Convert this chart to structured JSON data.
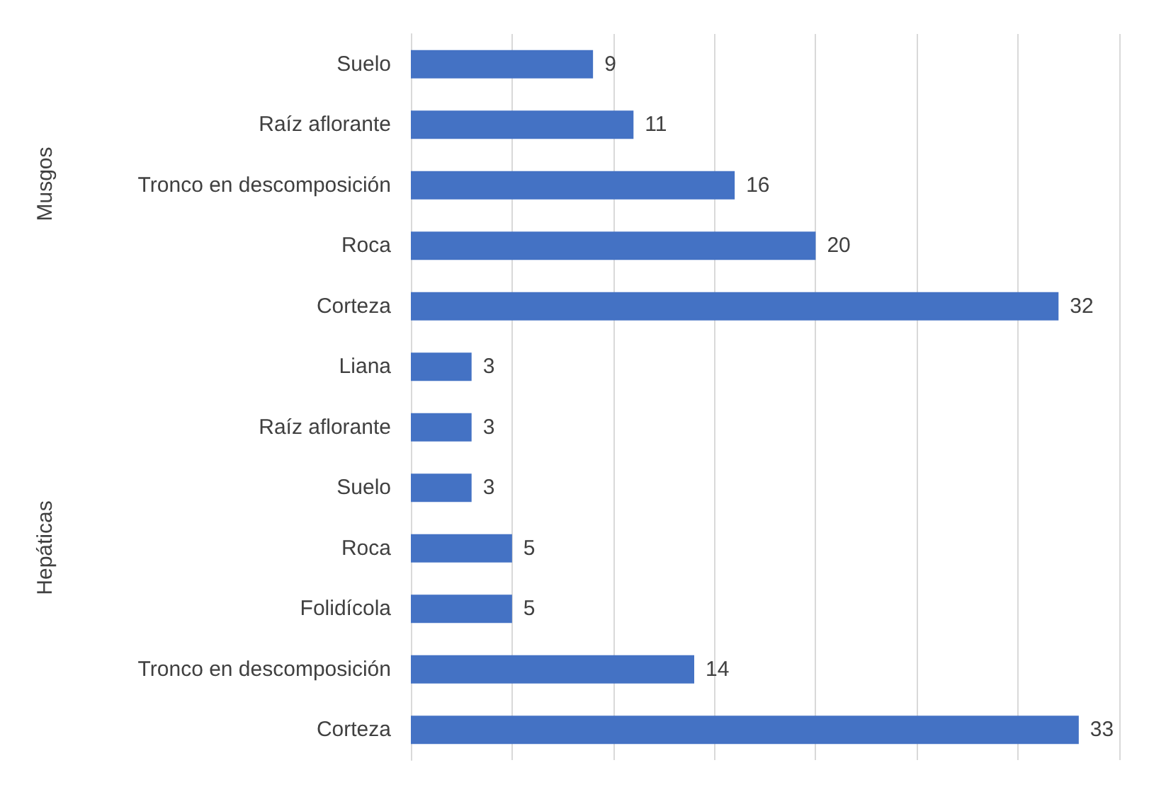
{
  "chart_data": {
    "type": "bar",
    "orientation": "horizontal",
    "categories": [
      "Suelo",
      "Raíz aflorante",
      "Tronco en descomposición",
      "Roca",
      "Corteza",
      "Liana",
      "Raíz aflorante",
      "Suelo",
      "Roca",
      "Folidícola",
      "Tronco en descomposición",
      "Corteza"
    ],
    "values": [
      9,
      11,
      16,
      20,
      32,
      3,
      3,
      3,
      5,
      5,
      14,
      33
    ],
    "color": "#4472c4",
    "data_labels": true,
    "xlim": [
      0,
      35
    ],
    "xticks": [
      {
        "value": 0,
        "label": null
      },
      {
        "value": 5,
        "label": null
      },
      {
        "value": 10,
        "label": null
      },
      {
        "value": 15,
        "label": null
      },
      {
        "value": 20,
        "label": null
      },
      {
        "value": 25,
        "label": null
      },
      {
        "value": 30,
        "label": null
      },
      {
        "value": 35,
        "label": null
      }
    ],
    "tick_labels": "y",
    "grid": "x",
    "annotations": [
      "Musgos",
      "Hepáticas"
    ]
  }
}
